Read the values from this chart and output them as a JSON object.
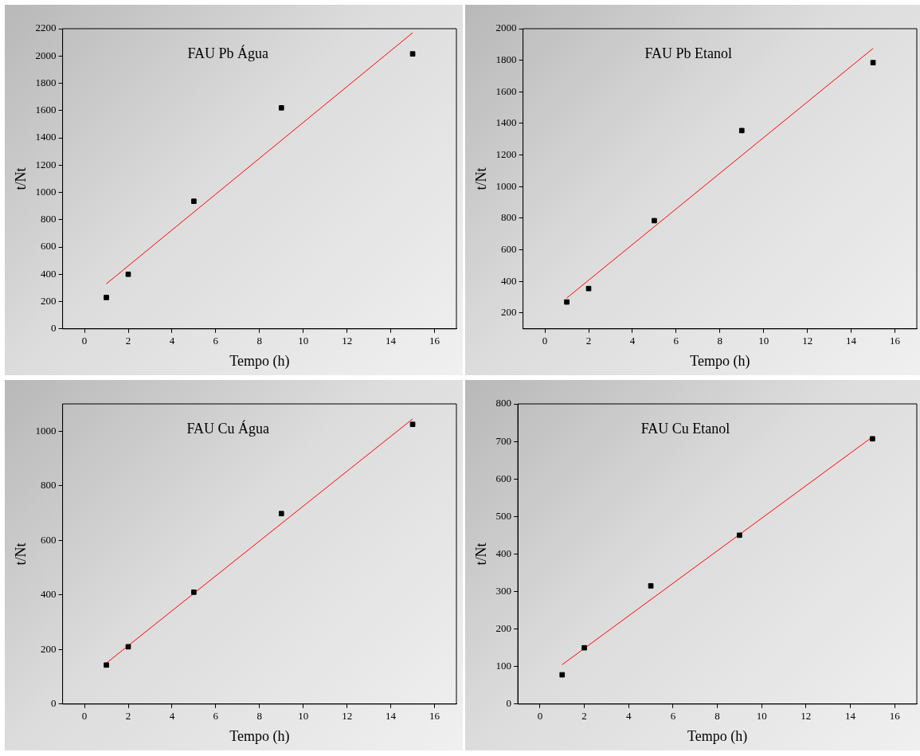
{
  "chart_data": [
    {
      "type": "scatter",
      "title": "FAU Pb Água",
      "xlabel": "Tempo (h)",
      "ylabel": "t/Nt",
      "xlim": [
        -1,
        17
      ],
      "xticks": [
        0,
        2,
        4,
        6,
        8,
        10,
        12,
        14,
        16
      ],
      "ylim": [
        0,
        2200
      ],
      "yticks": [
        0,
        200,
        400,
        600,
        800,
        1000,
        1200,
        1400,
        1600,
        1800,
        2000,
        2200
      ],
      "grid": false,
      "legend": false,
      "series": [
        {
          "type": "scatter",
          "marker": "square",
          "color": "#000000",
          "x": [
            1,
            2,
            5,
            9,
            15
          ],
          "values": [
            230,
            400,
            935,
            1620,
            2015
          ]
        },
        {
          "type": "line",
          "marker": "none",
          "color": "#ff0000",
          "x": [
            1,
            15
          ],
          "values": [
            330,
            2170
          ]
        }
      ]
    },
    {
      "type": "scatter",
      "title": "FAU Pb Etanol",
      "xlabel": "Tempo (h)",
      "ylabel": "t/Nt",
      "xlim": [
        -1,
        17
      ],
      "xticks": [
        0,
        2,
        4,
        6,
        8,
        10,
        12,
        14,
        16
      ],
      "ylim": [
        100,
        2000
      ],
      "yticks": [
        200,
        400,
        600,
        800,
        1000,
        1200,
        1400,
        1600,
        1800,
        2000
      ],
      "grid": false,
      "legend": false,
      "series": [
        {
          "type": "scatter",
          "marker": "square",
          "color": "#000000",
          "x": [
            1,
            2,
            5,
            9,
            15
          ],
          "values": [
            270,
            355,
            785,
            1355,
            1785
          ]
        },
        {
          "type": "line",
          "marker": "none",
          "color": "#ff0000",
          "x": [
            1,
            15
          ],
          "values": [
            295,
            1875
          ]
        }
      ]
    },
    {
      "type": "scatter",
      "title": "FAU Cu Água",
      "xlabel": "Tempo (h)",
      "ylabel": "t/Nt",
      "xlim": [
        -1,
        17
      ],
      "xticks": [
        0,
        2,
        4,
        6,
        8,
        10,
        12,
        14,
        16
      ],
      "ylim": [
        0,
        1100
      ],
      "yticks": [
        0,
        200,
        400,
        600,
        800,
        1000
      ],
      "grid": false,
      "legend": false,
      "series": [
        {
          "type": "scatter",
          "marker": "square",
          "color": "#000000",
          "x": [
            1,
            2,
            5,
            9,
            15
          ],
          "values": [
            143,
            210,
            410,
            698,
            1025
          ]
        },
        {
          "type": "line",
          "marker": "none",
          "color": "#ff0000",
          "x": [
            1,
            15
          ],
          "values": [
            150,
            1045
          ]
        }
      ]
    },
    {
      "type": "scatter",
      "title": "FAU Cu Etanol",
      "xlabel": "Tempo (h)",
      "ylabel": "t/Nt",
      "xlim": [
        -1,
        17
      ],
      "xticks": [
        0,
        2,
        4,
        6,
        8,
        10,
        12,
        14,
        16
      ],
      "ylim": [
        0,
        800
      ],
      "yticks": [
        0,
        100,
        200,
        300,
        400,
        500,
        600,
        700,
        800
      ],
      "grid": false,
      "legend": false,
      "series": [
        {
          "type": "scatter",
          "marker": "square",
          "color": "#000000",
          "x": [
            1,
            2,
            5,
            9,
            15
          ],
          "values": [
            78,
            150,
            315,
            450,
            707
          ]
        },
        {
          "type": "line",
          "marker": "none",
          "color": "#ff0000",
          "x": [
            1,
            15
          ],
          "values": [
            105,
            712
          ]
        }
      ]
    }
  ]
}
